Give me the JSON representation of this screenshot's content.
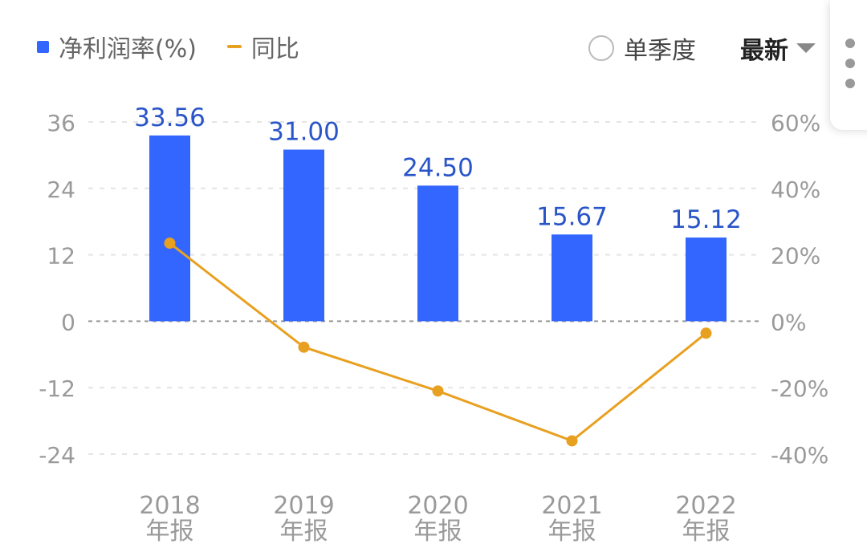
{
  "legend": {
    "bar_label": "净利润率(%)",
    "line_label": "同比"
  },
  "controls": {
    "quarter_label": "单季度",
    "latest_label": "最新"
  },
  "chart_data": {
    "type": "bar",
    "categories": [
      "2018年报",
      "2019年报",
      "2020年报",
      "2021年报",
      "2022年报"
    ],
    "category_lines": [
      [
        "2018",
        "年报"
      ],
      [
        "2019",
        "年报"
      ],
      [
        "2020",
        "年报"
      ],
      [
        "2021",
        "年报"
      ],
      [
        "2022",
        "年报"
      ]
    ],
    "series": [
      {
        "name": "净利润率(%)",
        "type": "bar",
        "axis": "left",
        "color": "#3366ff",
        "values": [
          33.56,
          31.0,
          24.5,
          15.67,
          15.12
        ],
        "labels": [
          "33.56",
          "31.00",
          "24.50",
          "15.67",
          "15.12"
        ]
      },
      {
        "name": "同比",
        "type": "line",
        "axis": "right",
        "color": "#e8a020",
        "values": [
          23.5,
          -7.8,
          -21.0,
          -36.0,
          -3.6
        ]
      }
    ],
    "y_left": {
      "ticks": [
        36,
        24,
        12,
        0,
        -12,
        -24
      ],
      "tick_labels": [
        "36",
        "24",
        "12",
        "0",
        "-12",
        "-24"
      ],
      "range": [
        -24,
        36
      ]
    },
    "y_right": {
      "ticks": [
        60,
        40,
        20,
        0,
        -20,
        -40
      ],
      "tick_labels": [
        "60%",
        "40%",
        "20%",
        "0%",
        "-20%",
        "-40%"
      ],
      "range": [
        -40,
        60
      ]
    },
    "grid": true,
    "legend_position": "top-left",
    "colors": {
      "bar": "#3366ff",
      "line": "#e8a020",
      "bar_label": "#2a55c8",
      "axis_text": "#9a9a9a",
      "grid": "#e4e4e4",
      "zero_line": "#999999"
    }
  }
}
